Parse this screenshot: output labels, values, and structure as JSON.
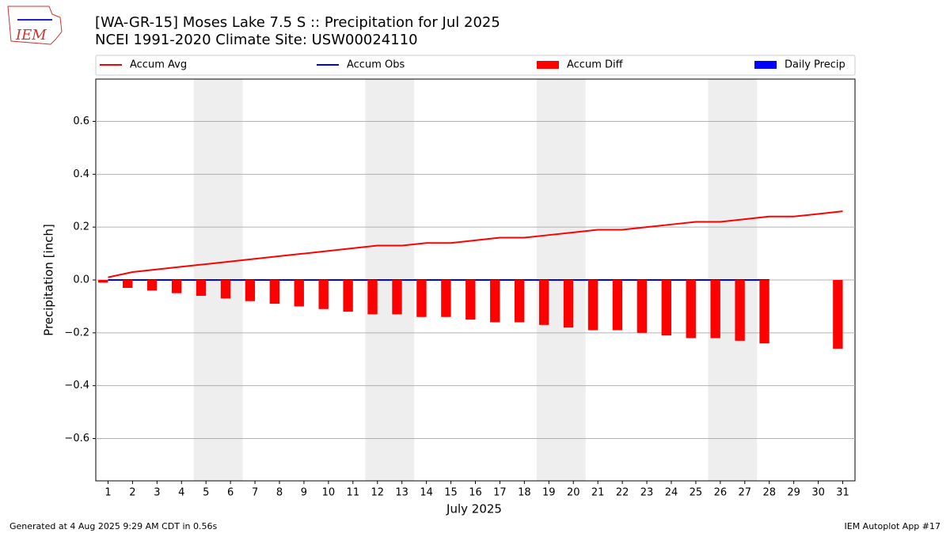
{
  "header": {
    "logo": "IEM"
  },
  "chart_data": {
    "type": "combo",
    "title": "[WA-GR-15] Moses Lake 7.5 S :: Precipitation for Jul 2025",
    "subtitle": "NCEI 1991-2020 Climate Site: USW00024110",
    "xlabel": "July 2025",
    "ylabel": "Precipitation [inch]",
    "x": [
      1,
      2,
      3,
      4,
      5,
      6,
      7,
      8,
      9,
      10,
      11,
      12,
      13,
      14,
      15,
      16,
      17,
      18,
      19,
      20,
      21,
      22,
      23,
      24,
      25,
      26,
      27,
      28,
      29,
      30,
      31
    ],
    "xlim": [
      0.5,
      31.5
    ],
    "xticks": [
      1,
      2,
      3,
      4,
      5,
      6,
      7,
      8,
      9,
      10,
      11,
      12,
      13,
      14,
      15,
      16,
      17,
      18,
      19,
      20,
      21,
      22,
      23,
      24,
      25,
      26,
      27,
      28,
      29,
      30,
      31
    ],
    "ylim": [
      -0.76,
      0.76
    ],
    "yticks": [
      {
        "value": -0.6,
        "label": "−0.6"
      },
      {
        "value": -0.4,
        "label": "−0.4"
      },
      {
        "value": -0.2,
        "label": "−0.2"
      },
      {
        "value": 0,
        "label": "0.0"
      },
      0.2,
      0.4,
      0.6
    ],
    "grid": true,
    "series": [
      {
        "name": "Accum Avg",
        "kind": "line",
        "color": "#ff0000",
        "values": [
          0.01,
          0.03,
          0.04,
          0.05,
          0.06,
          0.07,
          0.08,
          0.09,
          0.1,
          0.11,
          0.12,
          0.13,
          0.13,
          0.14,
          0.14,
          0.15,
          0.16,
          0.16,
          0.17,
          0.18,
          0.19,
          0.19,
          0.2,
          0.21,
          0.22,
          0.22,
          0.23,
          0.24,
          0.24,
          0.25,
          0.26
        ]
      },
      {
        "name": "Accum Obs",
        "kind": "line",
        "color": "#0000ff",
        "values": [
          0,
          0,
          0,
          0,
          0,
          0,
          0,
          0,
          0,
          0,
          0,
          0,
          0,
          0,
          0,
          0,
          0,
          0,
          0,
          0,
          0,
          0,
          0,
          0,
          0,
          0,
          0,
          0,
          null,
          null,
          null
        ]
      },
      {
        "name": "Accum Diff",
        "kind": "bar",
        "color": "#ff0000",
        "values": [
          -0.01,
          -0.03,
          -0.04,
          -0.05,
          -0.06,
          -0.07,
          -0.08,
          -0.09,
          -0.1,
          -0.11,
          -0.12,
          -0.13,
          -0.13,
          -0.14,
          -0.14,
          -0.15,
          -0.16,
          -0.16,
          -0.17,
          -0.18,
          -0.19,
          -0.19,
          -0.2,
          -0.21,
          -0.22,
          -0.22,
          -0.23,
          -0.24,
          null,
          null,
          -0.26
        ]
      },
      {
        "name": "Daily Precip",
        "kind": "bar",
        "color": "#0000ff",
        "values": [
          0,
          0,
          0,
          0,
          0,
          0,
          0,
          0,
          0,
          0,
          0,
          0,
          0,
          0,
          0,
          0,
          0,
          0,
          0,
          0,
          0,
          0,
          0,
          0,
          0,
          0,
          0,
          0,
          null,
          null,
          null
        ]
      }
    ]
  },
  "footer": {
    "left": "Generated at 4 Aug 2025 9:29 AM CDT in 0.56s",
    "right": "IEM Autoplot App #17"
  }
}
